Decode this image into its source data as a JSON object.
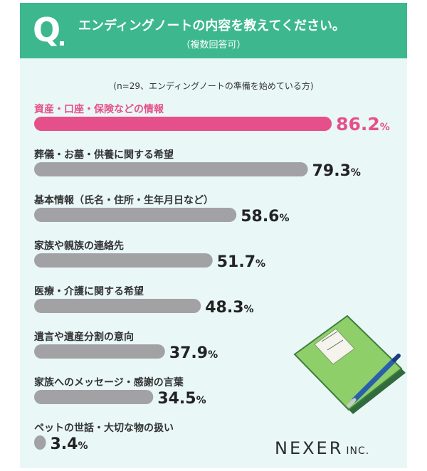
{
  "header": {
    "q_letter": "Q",
    "title": "エンディングノートの内容を教えてください。",
    "subtitle": "（複数回答可）"
  },
  "note": "(n=29、エンディングノートの準備を始めている方)",
  "brand": {
    "main": "NEXER",
    "sub": "INC."
  },
  "colors": {
    "header": "#3db88e",
    "highlight": "#e6508a",
    "bar": "#a2a2a4",
    "background": "#e9f7f7"
  },
  "chart_data": {
    "type": "bar",
    "orientation": "horizontal",
    "unit": "%",
    "categories": [
      "資産・口座・保険などの情報",
      "葬儀・お墓・供養に関する希望",
      "基本情報（氏名・住所・生年月日など）",
      "家族や親族の連絡先",
      "医療・介護に関する希望",
      "遺言や遺産分割の意向",
      "家族へのメッセージ・感謝の言葉",
      "ペットの世話・大切な物の扱い"
    ],
    "values": [
      86.2,
      79.3,
      58.6,
      51.7,
      48.3,
      37.9,
      34.5,
      3.4
    ],
    "value_labels": [
      "86.2",
      "79.3",
      "58.6",
      "51.7",
      "48.3",
      "37.9",
      "34.5",
      "3.4"
    ],
    "highlight_index": 0
  }
}
